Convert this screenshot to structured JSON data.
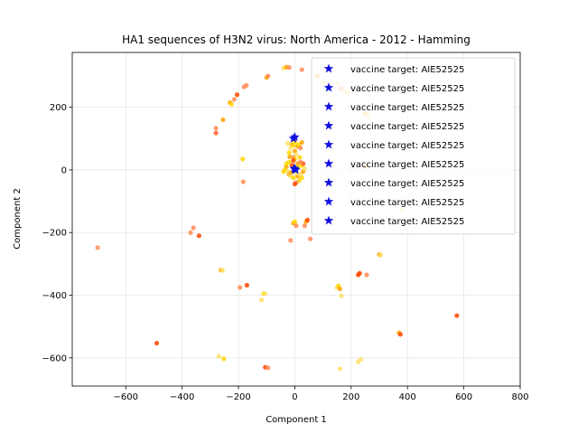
{
  "chart_data": {
    "type": "scatter",
    "title": "HA1 sequences of H3N2 virus: North America - 2012 - Hamming",
    "xlabel": "Component 1",
    "ylabel": "Component 2",
    "xlim": [
      -790,
      800
    ],
    "ylim": [
      -690,
      375
    ],
    "xticks": [
      -600,
      -400,
      -200,
      0,
      200,
      400,
      600,
      800
    ],
    "yticks": [
      -600,
      -400,
      -200,
      0,
      200
    ],
    "grid": true,
    "legend_position": "top-right",
    "legend": [
      "vaccine target: AIE52525",
      "vaccine target: AIE52525",
      "vaccine target: AIE52525",
      "vaccine target: AIE52525",
      "vaccine target: AIE52525",
      "vaccine target: AIE52525",
      "vaccine target: AIE52525",
      "vaccine target: AIE52525",
      "vaccine target: AIE52525"
    ],
    "colors": {
      "vaccine": "#1010e0",
      "points": [
        "#ff4500",
        "#ff8c55",
        "#ffa500",
        "#ffd700",
        "#ffe066",
        "#ff6030"
      ]
    },
    "vaccine_points": [
      [
        0,
        105
      ],
      [
        -5,
        100
      ],
      [
        -2,
        5
      ],
      [
        3,
        0
      ],
      [
        0,
        2
      ]
    ],
    "points": [
      [
        -700,
        -248,
        1
      ],
      [
        -490,
        -553,
        0
      ],
      [
        -360,
        -185,
        1
      ],
      [
        -370,
        -200,
        1
      ],
      [
        -340,
        -210,
        0
      ],
      [
        -280,
        133,
        1
      ],
      [
        -280,
        118,
        5
      ],
      [
        -255,
        160,
        2
      ],
      [
        -262,
        -320,
        2
      ],
      [
        -257,
        -320,
        4
      ],
      [
        -230,
        215,
        2
      ],
      [
        -225,
        210,
        3
      ],
      [
        -215,
        225,
        1
      ],
      [
        -205,
        240,
        0
      ],
      [
        -180,
        265,
        1
      ],
      [
        -172,
        270,
        1
      ],
      [
        -185,
        35,
        3
      ],
      [
        -183,
        -38,
        1
      ],
      [
        -195,
        -375,
        1
      ],
      [
        -170,
        -368,
        0
      ],
      [
        -252,
        -603,
        3
      ],
      [
        -270,
        -595,
        4
      ],
      [
        -110,
        -395,
        3
      ],
      [
        -105,
        -395,
        4
      ],
      [
        -118,
        -415,
        4
      ],
      [
        -105,
        -630,
        0
      ],
      [
        -95,
        -632,
        1
      ],
      [
        -100,
        295,
        2
      ],
      [
        -95,
        300,
        1
      ],
      [
        -40,
        325,
        4
      ],
      [
        -30,
        328,
        2
      ],
      [
        -20,
        327,
        1
      ],
      [
        25,
        320,
        1
      ],
      [
        80,
        300,
        2
      ],
      [
        100,
        280,
        4
      ],
      [
        120,
        270,
        1
      ],
      [
        150,
        275,
        4
      ],
      [
        165,
        260,
        1
      ],
      [
        180,
        250,
        4
      ],
      [
        190,
        245,
        4
      ],
      [
        250,
        180,
        2
      ],
      [
        260,
        175,
        4
      ],
      [
        250,
        10,
        2
      ],
      [
        205,
        10,
        1
      ],
      [
        380,
        -130,
        4
      ],
      [
        -15,
        -225,
        1
      ],
      [
        -5,
        -170,
        2
      ],
      [
        0,
        -165,
        3
      ],
      [
        5,
        -178,
        1
      ],
      [
        35,
        -178,
        1
      ],
      [
        40,
        -165,
        2
      ],
      [
        45,
        -160,
        0
      ],
      [
        55,
        -220,
        1
      ],
      [
        150,
        -375,
        4
      ],
      [
        155,
        -370,
        3
      ],
      [
        160,
        -380,
        2
      ],
      [
        165,
        -402,
        4
      ],
      [
        225,
        -335,
        0
      ],
      [
        230,
        -330,
        0
      ],
      [
        255,
        -335,
        1
      ],
      [
        300,
        -270,
        2
      ],
      [
        305,
        -272,
        4
      ],
      [
        370,
        -520,
        2
      ],
      [
        375,
        -525,
        0
      ],
      [
        575,
        -465,
        0
      ],
      [
        160,
        -635,
        4
      ],
      [
        225,
        -612,
        4
      ],
      [
        235,
        -605,
        4
      ],
      [
        -10,
        80,
        2
      ],
      [
        -5,
        78,
        3
      ],
      [
        5,
        82,
        4
      ],
      [
        10,
        75,
        2
      ],
      [
        15,
        80,
        3
      ],
      [
        -15,
        70,
        4
      ],
      [
        20,
        70,
        1
      ],
      [
        -20,
        55,
        3
      ],
      [
        0,
        60,
        2
      ],
      [
        5,
        50,
        4
      ],
      [
        -5,
        40,
        1
      ],
      [
        0,
        35,
        3
      ],
      [
        -10,
        15,
        0
      ],
      [
        10,
        20,
        2
      ],
      [
        -20,
        25,
        3
      ],
      [
        20,
        25,
        1
      ],
      [
        25,
        15,
        3
      ],
      [
        -30,
        10,
        2
      ],
      [
        -35,
        0,
        3
      ],
      [
        -25,
        -5,
        4
      ],
      [
        -40,
        -5,
        3
      ],
      [
        -20,
        -15,
        2
      ],
      [
        -15,
        -20,
        4
      ],
      [
        -5,
        -25,
        3
      ],
      [
        10,
        -20,
        2
      ],
      [
        20,
        -15,
        4
      ],
      [
        25,
        -25,
        3
      ],
      [
        30,
        -5,
        2
      ],
      [
        35,
        5,
        4
      ],
      [
        15,
        -35,
        3
      ],
      [
        5,
        -40,
        1
      ],
      [
        0,
        -45,
        0
      ],
      [
        -5,
        30,
        0
      ],
      [
        12,
        8,
        3
      ],
      [
        -12,
        -8,
        2
      ],
      [
        8,
        -10,
        4
      ],
      [
        -3,
        -3,
        3
      ],
      [
        30,
        20,
        5
      ],
      [
        -30,
        20,
        3
      ],
      [
        18,
        40,
        3
      ],
      [
        -18,
        42,
        2
      ],
      [
        0,
        90,
        3
      ],
      [
        -25,
        85,
        4
      ],
      [
        25,
        88,
        2
      ]
    ]
  }
}
